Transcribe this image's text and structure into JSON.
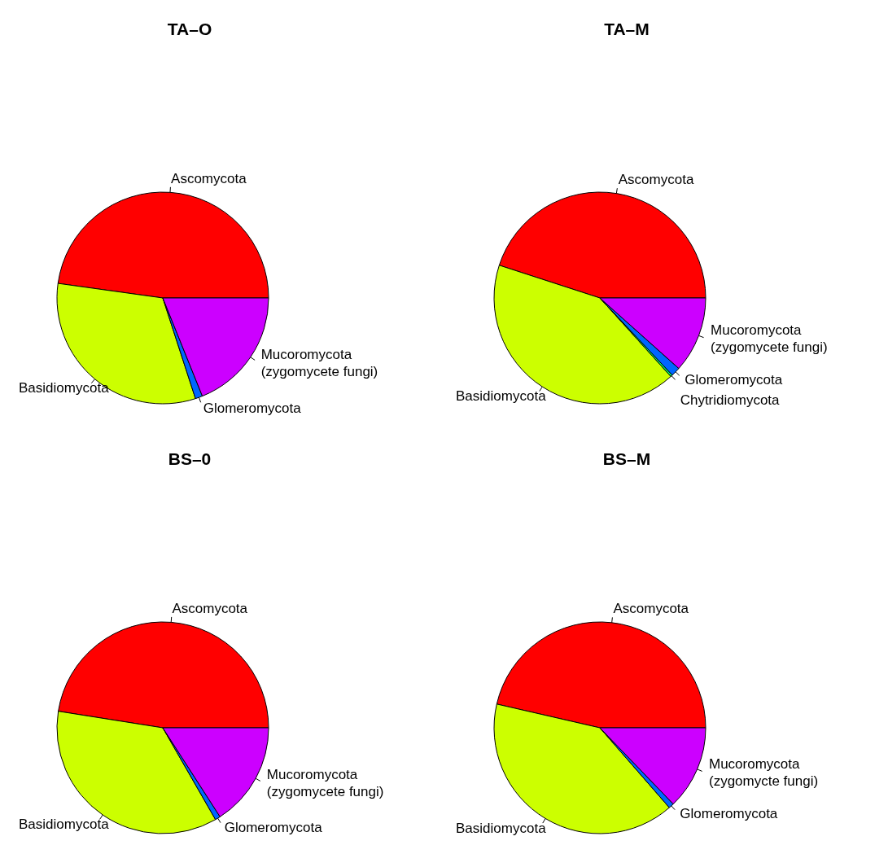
{
  "chart_data": [
    {
      "type": "pie",
      "title": "TA–O",
      "categories": [
        "Ascomycota",
        "Basidiomycota",
        "Glomeromycota",
        "Mucoromycota\n(zygomycete fungi)"
      ],
      "values": [
        47.8,
        32.2,
        1.1,
        18.9
      ],
      "colors": [
        "#ff0000",
        "#ccff00",
        "#0066ff",
        "#cc00ff"
      ]
    },
    {
      "type": "pie",
      "title": "TA–M",
      "categories": [
        "Ascomycota",
        "Basidiomycota",
        "Chytridiomycota",
        "Glomeromycota",
        "Mucoromycota\n(zygomycete fungi)"
      ],
      "values": [
        45,
        41.7,
        0.3,
        1.4,
        11.6
      ],
      "colors": [
        "#ff0000",
        "#ccff00",
        "#00ff66",
        "#0066ff",
        "#cc00ff"
      ]
    },
    {
      "type": "pie",
      "title": "BS–0",
      "categories": [
        "Ascomycota",
        "Basidiomycota",
        "Glomeromycota",
        "Mucoromycota\n(zygomycete fungi)"
      ],
      "values": [
        47.5,
        35.8,
        0.8,
        15.9
      ],
      "colors": [
        "#ff0000",
        "#ccff00",
        "#0066ff",
        "#cc00ff"
      ]
    },
    {
      "type": "pie",
      "title": "BS–M",
      "categories": [
        "Ascomycota",
        "Basidiomycota",
        "Glomeromycota",
        "Mucoromycota\n(zygomycte fungi)"
      ],
      "values": [
        46.4,
        40,
        0.8,
        12.8
      ],
      "colors": [
        "#ff0000",
        "#ccff00",
        "#0066ff",
        "#cc00ff"
      ]
    }
  ]
}
